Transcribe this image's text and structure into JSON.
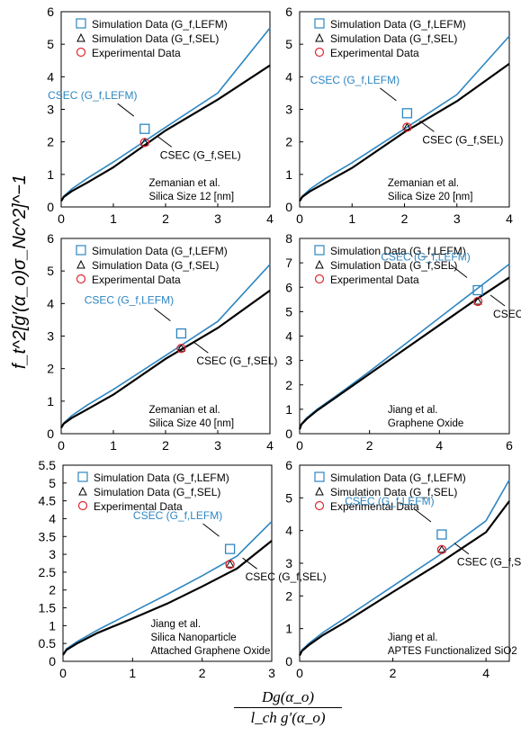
{
  "figure": {
    "ylabel": "f_t^2[g′(α_o)σ_Nc^2]^−1",
    "xlabel": "Dg(α_o) / l_ch g′(α_o)"
  },
  "chart_data": [
    {
      "type": "line",
      "xlim": [
        0,
        4
      ],
      "ylim": [
        0,
        6
      ],
      "xticks": [
        0,
        1,
        2,
        3,
        4
      ],
      "yticks": [
        0,
        1,
        2,
        3,
        4,
        5,
        6
      ],
      "series": [
        {
          "name": "CSEC (G_f,LEFM)",
          "color": "#2e86c1",
          "x": [
            0,
            0.05,
            0.2,
            0.5,
            1,
            2,
            3,
            4
          ],
          "y": [
            0.18,
            0.33,
            0.55,
            0.88,
            1.38,
            2.45,
            3.5,
            5.5
          ]
        },
        {
          "name": "CSEC (G_f,SEL)",
          "color": "#000000",
          "x": [
            0,
            0.05,
            0.2,
            0.5,
            1,
            2,
            3,
            4
          ],
          "y": [
            0.18,
            0.31,
            0.48,
            0.75,
            1.22,
            2.35,
            3.3,
            4.35
          ]
        }
      ],
      "points": {
        "lefm": [
          1.6,
          2.4
        ],
        "sel": [
          1.6,
          1.98
        ],
        "exp": [
          1.6,
          1.98
        ]
      },
      "legend": [
        "Simulation Data (G_f,LEFM)",
        "Simulation Data (G_f,SEL)",
        "Experimental Data"
      ],
      "annotations": [
        "CSEC (G_f,LEFM)",
        "CSEC (G_f,SEL)"
      ],
      "caption": [
        "Zemanian et al.",
        "Silica Size 12 [nm]"
      ]
    },
    {
      "type": "line",
      "xlim": [
        0,
        4
      ],
      "ylim": [
        0,
        6
      ],
      "xticks": [
        0,
        1,
        2,
        3,
        4
      ],
      "yticks": [
        0,
        1,
        2,
        3,
        4,
        5,
        6
      ],
      "series": [
        {
          "name": "CSEC (G_f,LEFM)",
          "color": "#2e86c1",
          "x": [
            0,
            0.05,
            0.2,
            0.5,
            1,
            2,
            3,
            4
          ],
          "y": [
            0.18,
            0.33,
            0.55,
            0.88,
            1.36,
            2.4,
            3.45,
            5.25
          ]
        },
        {
          "name": "CSEC (G_f,SEL)",
          "color": "#000000",
          "x": [
            0,
            0.05,
            0.2,
            0.5,
            1,
            2,
            3,
            4
          ],
          "y": [
            0.18,
            0.31,
            0.48,
            0.75,
            1.2,
            2.3,
            3.25,
            4.4
          ]
        }
      ],
      "points": {
        "lefm": [
          2.05,
          2.88
        ],
        "sel": [
          2.05,
          2.45
        ],
        "exp": [
          2.05,
          2.45
        ]
      },
      "legend": [
        "Simulation Data (G_f,LEFM)",
        "Simulation Data (G_f,SEL)",
        "Experimental Data"
      ],
      "annotations": [
        "CSEC (G_f,LEFM)",
        "CSEC (G_f,SEL)"
      ],
      "caption": [
        "Zemanian et al.",
        "Silica Size 20 [nm]"
      ]
    },
    {
      "type": "line",
      "xlim": [
        0,
        4
      ],
      "ylim": [
        0,
        6
      ],
      "xticks": [
        0,
        1,
        2,
        3,
        4
      ],
      "yticks": [
        0,
        1,
        2,
        3,
        4,
        5,
        6
      ],
      "series": [
        {
          "name": "CSEC (G_f,LEFM)",
          "color": "#2e86c1",
          "x": [
            0,
            0.05,
            0.2,
            0.5,
            1,
            2,
            3,
            4
          ],
          "y": [
            0.18,
            0.33,
            0.55,
            0.88,
            1.36,
            2.4,
            3.45,
            5.2
          ]
        },
        {
          "name": "CSEC (G_f,SEL)",
          "color": "#000000",
          "x": [
            0,
            0.05,
            0.2,
            0.5,
            1,
            2,
            3,
            4
          ],
          "y": [
            0.18,
            0.31,
            0.48,
            0.75,
            1.2,
            2.3,
            3.25,
            4.4
          ]
        }
      ],
      "points": {
        "lefm": [
          2.3,
          3.08
        ],
        "sel": [
          2.3,
          2.62
        ],
        "exp": [
          2.3,
          2.62
        ]
      },
      "legend": [
        "Simulation Data (G_f,LEFM)",
        "Simulation Data (G_f,SEL)",
        "Experimental Data"
      ],
      "annotations": [
        "CSEC (G_f,LEFM)",
        "CSEC (G_f,SEL)"
      ],
      "caption": [
        "Zemanian et al.",
        "Silica Size 40 [nm]"
      ]
    },
    {
      "type": "line",
      "xlim": [
        0,
        6
      ],
      "ylim": [
        0,
        8
      ],
      "xticks": [
        0,
        2,
        4,
        6
      ],
      "yticks": [
        0,
        1,
        2,
        3,
        4,
        5,
        6,
        7,
        8
      ],
      "series": [
        {
          "name": "CSEC (G_f,LEFM)",
          "color": "#2e86c1",
          "x": [
            0,
            0.05,
            0.2,
            0.5,
            1,
            2,
            3,
            4,
            5,
            6
          ],
          "y": [
            0.18,
            0.4,
            0.65,
            1.0,
            1.5,
            2.55,
            3.65,
            4.75,
            5.85,
            6.95
          ]
        },
        {
          "name": "CSEC (G_f,SEL)",
          "color": "#000000",
          "x": [
            0,
            0.05,
            0.2,
            0.5,
            1,
            2,
            3,
            4,
            5,
            6
          ],
          "y": [
            0.18,
            0.38,
            0.6,
            0.95,
            1.45,
            2.45,
            3.45,
            4.45,
            5.45,
            6.4
          ]
        }
      ],
      "points": {
        "lefm": [
          5.1,
          5.88
        ],
        "sel": [
          5.1,
          5.42
        ],
        "exp": [
          5.1,
          5.42
        ]
      },
      "legend": [
        "Simulation Data (G_f,LEFM)",
        "Simulation Data (G_f,SEL)",
        "Experimental Data"
      ],
      "annotations": [
        "CSEC (G_f,LEFM)",
        "CSEC (G_f,SEL)"
      ],
      "caption": [
        "Jiang et al.",
        "Graphene Oxide"
      ]
    },
    {
      "type": "line",
      "xlim": [
        0,
        3
      ],
      "ylim": [
        0,
        5.5
      ],
      "xticks": [
        0,
        1,
        2,
        3
      ],
      "yticks": [
        0,
        0.5,
        1,
        1.5,
        2,
        2.5,
        3,
        3.5,
        4,
        4.5,
        5,
        5.5
      ],
      "series": [
        {
          "name": "CSEC (G_f,LEFM)",
          "color": "#2e86c1",
          "x": [
            0,
            0.05,
            0.2,
            0.5,
            1,
            1.5,
            2,
            2.5,
            3
          ],
          "y": [
            0.18,
            0.35,
            0.55,
            0.88,
            1.38,
            1.88,
            2.4,
            2.95,
            3.92
          ]
        },
        {
          "name": "CSEC (G_f,SEL)",
          "color": "#000000",
          "x": [
            0,
            0.05,
            0.2,
            0.5,
            1,
            1.5,
            2,
            2.5,
            3
          ],
          "y": [
            0.18,
            0.32,
            0.5,
            0.8,
            1.2,
            1.62,
            2.1,
            2.6,
            3.38
          ]
        }
      ],
      "points": {
        "lefm": [
          2.4,
          3.15
        ],
        "sel": [
          2.4,
          2.72
        ],
        "exp": [
          2.4,
          2.72
        ]
      },
      "legend": [
        "Simulation Data (G_f,LEFM)",
        "Simulation Data (G_f,SEL)",
        "Experimental Data"
      ],
      "annotations": [
        "CSEC (G_f,LEFM)",
        "CSEC (G_f,SEL)"
      ],
      "caption": [
        "Jiang et al.",
        "Silica Nanoparticle",
        "Attached Graphene Oxide"
      ]
    },
    {
      "type": "line",
      "xlim": [
        0,
        4.5
      ],
      "ylim": [
        0,
        6
      ],
      "xticks": [
        0,
        2,
        4
      ],
      "yticks": [
        0,
        1,
        2,
        3,
        4,
        5,
        6
      ],
      "series": [
        {
          "name": "CSEC (G_f,LEFM)",
          "color": "#2e86c1",
          "x": [
            0,
            0.05,
            0.2,
            0.5,
            1,
            2,
            3,
            4,
            4.5
          ],
          "y": [
            0.18,
            0.35,
            0.55,
            0.88,
            1.35,
            2.3,
            3.25,
            4.3,
            5.55
          ]
        },
        {
          "name": "CSEC (G_f,SEL)",
          "color": "#000000",
          "x": [
            0,
            0.05,
            0.2,
            0.5,
            1,
            2,
            3,
            4,
            4.5
          ],
          "y": [
            0.18,
            0.32,
            0.5,
            0.8,
            1.22,
            2.12,
            3.0,
            3.95,
            4.9
          ]
        }
      ],
      "points": {
        "lefm": [
          3.05,
          3.88
        ],
        "sel": [
          3.05,
          3.42
        ],
        "exp": [
          3.05,
          3.42
        ]
      },
      "legend": [
        "Simulation Data (G_f,LEFM)",
        "Simulation Data (G_f,SEL)",
        "Experimental Data"
      ],
      "annotations": [
        "CSEC (G_f,LEFM)",
        "CSEC (G_f,SEL)"
      ],
      "caption": [
        "Jiang et al.",
        "APTES Functionalized SiO2"
      ]
    }
  ]
}
